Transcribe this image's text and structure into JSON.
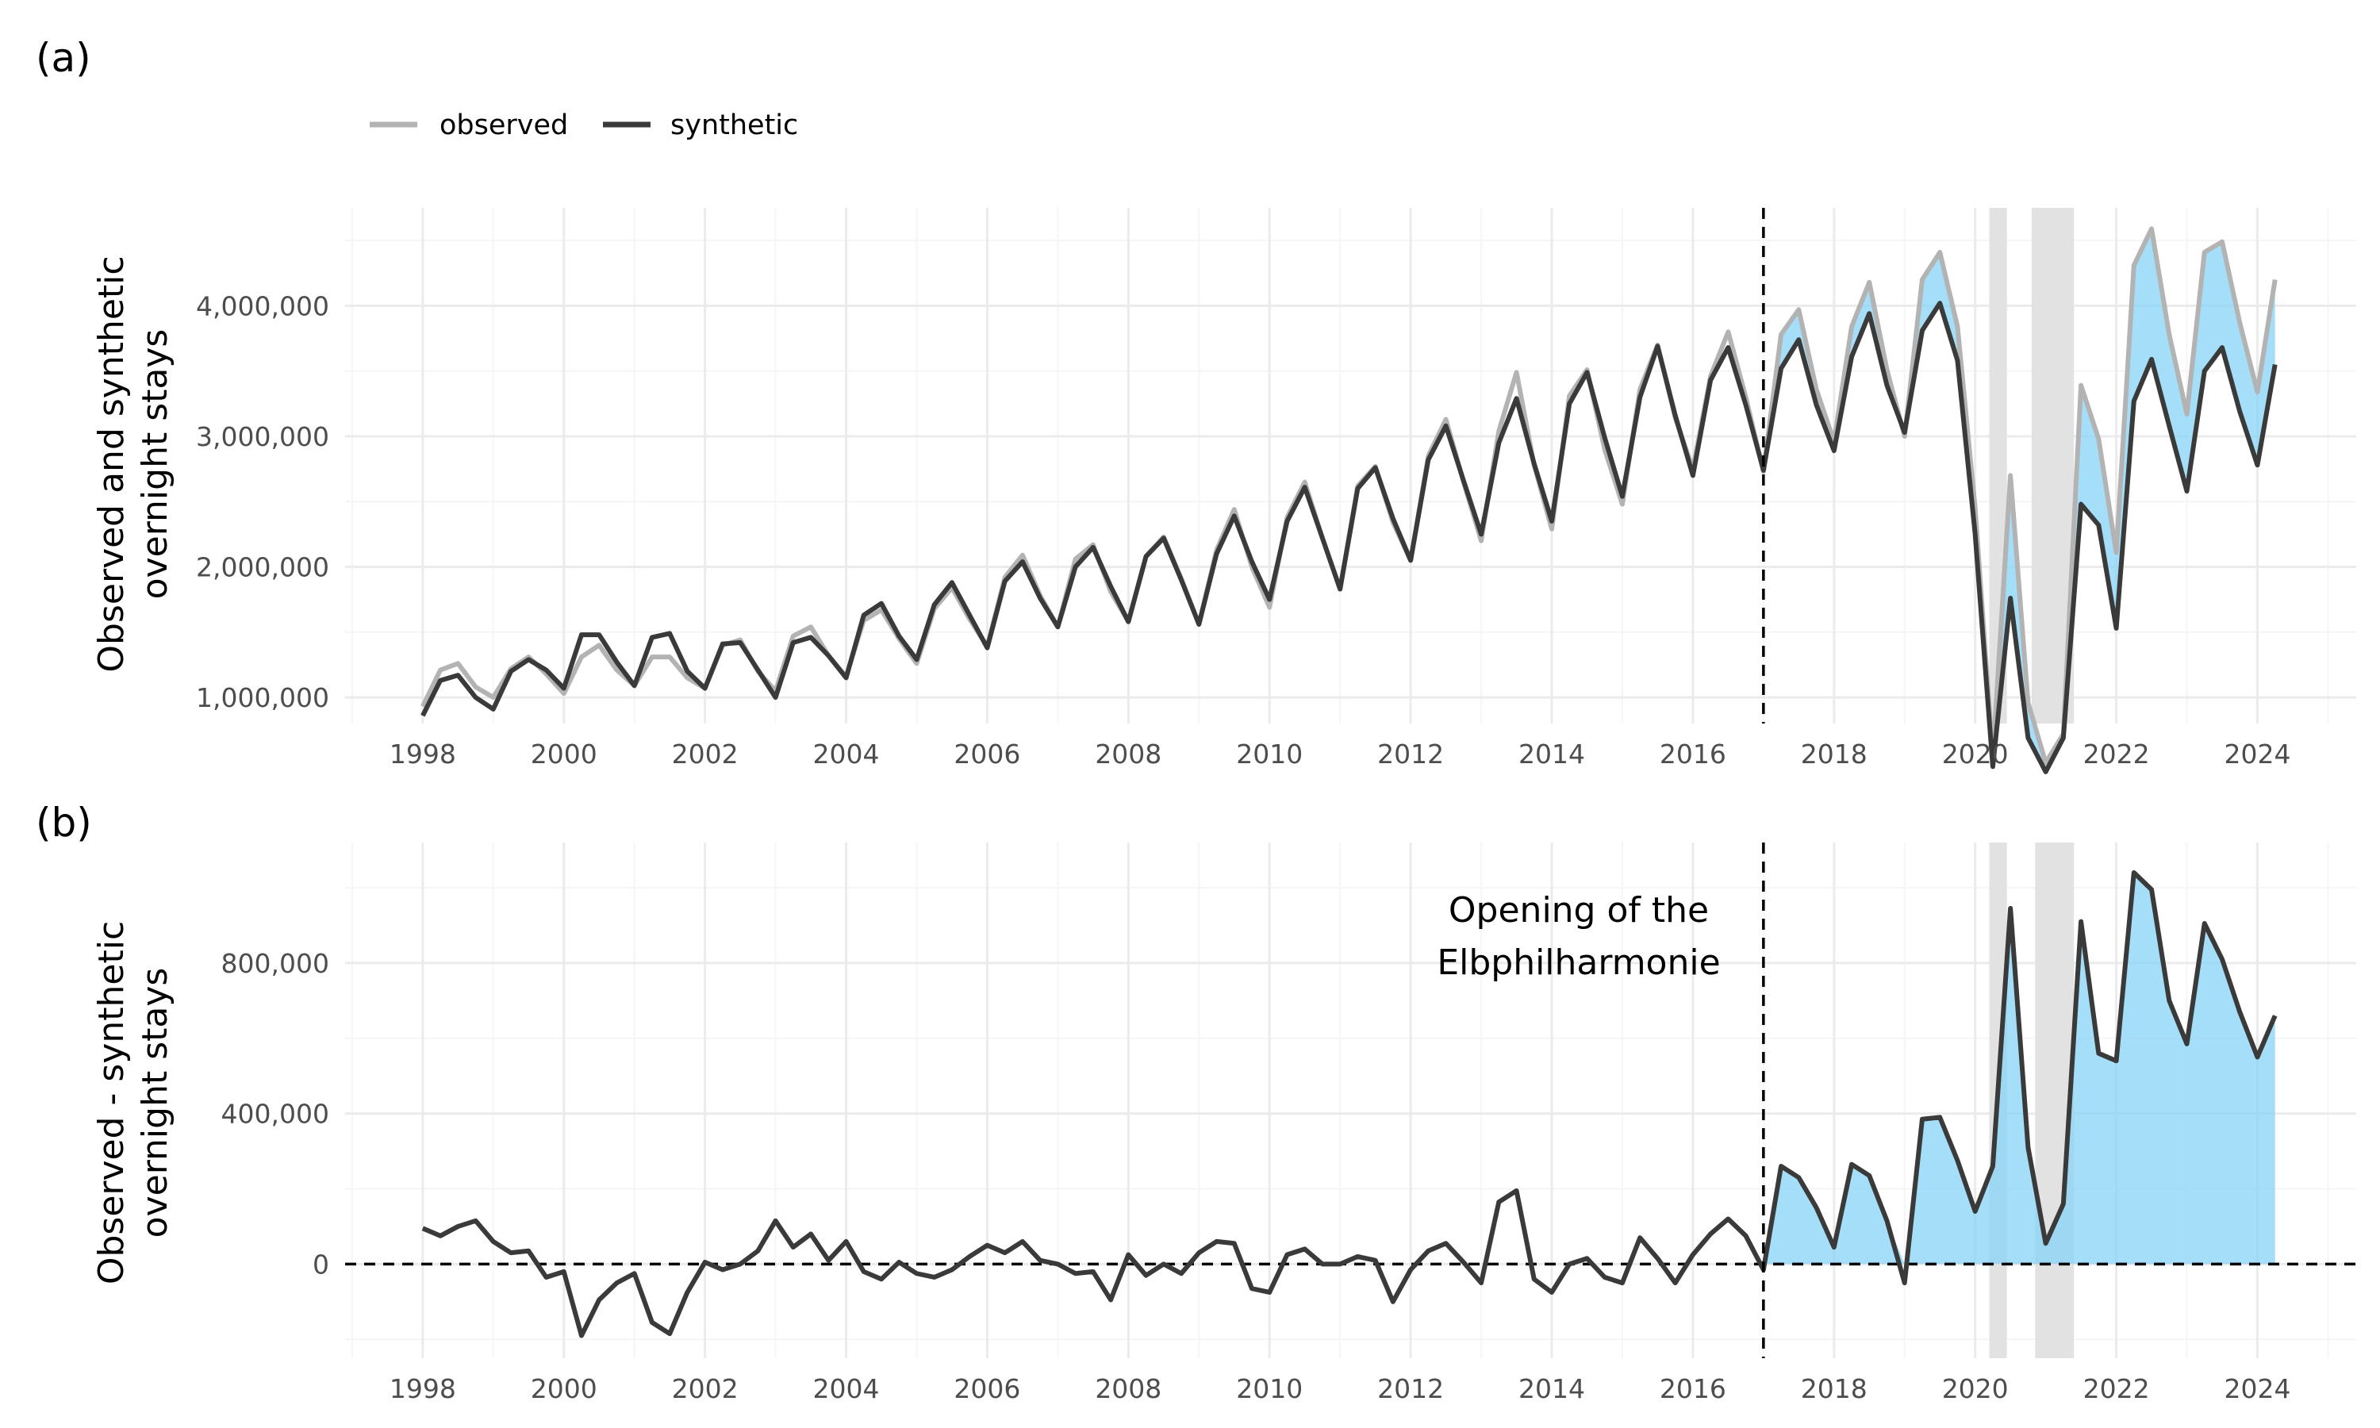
{
  "colors": {
    "observed": "#b3b3b3",
    "synthetic": "#3a3a3a",
    "gap_fill": "#87d3f7",
    "shade": "#e2e2e2",
    "grid_major": "#ebebeb",
    "grid_minor": "#f5f5f5"
  },
  "legend": {
    "observed": "observed",
    "synthetic": "synthetic"
  },
  "chart_data": [
    {
      "panel": "(a)",
      "type": "line",
      "ylabel_line1": "Observed and synthetic",
      "ylabel_line2": "overnight stays",
      "xlim": [
        1996.9,
        2025.4
      ],
      "ylim": [
        800000,
        4750000
      ],
      "x_ticks": [
        1998,
        2000,
        2002,
        2004,
        2006,
        2008,
        2010,
        2012,
        2014,
        2016,
        2018,
        2020,
        2022,
        2024
      ],
      "y_ticks": [
        {
          "value": 1000000,
          "label": "1,000,000"
        },
        {
          "value": 2000000,
          "label": "2,000,000"
        },
        {
          "value": 3000000,
          "label": "3,000,000"
        },
        {
          "value": 4000000,
          "label": "4,000,000"
        }
      ],
      "treatment_x": 2017.0,
      "shaded_periods": [
        [
          2020.2,
          2020.45
        ],
        [
          2020.8,
          2021.4
        ]
      ],
      "x_start": 1998.0,
      "x_step": 0.25,
      "series": [
        {
          "name": "observed",
          "values": [
            930000,
            1210000,
            1260000,
            1080000,
            1000000,
            1220000,
            1310000,
            1180000,
            1030000,
            1310000,
            1400000,
            1210000,
            1090000,
            1310000,
            1310000,
            1150000,
            1070000,
            1400000,
            1440000,
            1200000,
            1050000,
            1470000,
            1540000,
            1320000,
            1160000,
            1590000,
            1670000,
            1450000,
            1260000,
            1680000,
            1840000,
            1600000,
            1390000,
            1920000,
            2090000,
            1780000,
            1540000,
            2060000,
            2170000,
            1810000,
            1580000,
            2080000,
            2230000,
            1910000,
            1560000,
            2130000,
            2440000,
            2000000,
            1690000,
            2380000,
            2650000,
            2220000,
            1830000,
            2620000,
            2770000,
            2340000,
            2050000,
            2850000,
            3130000,
            2650000,
            2200000,
            3040000,
            3490000,
            2780000,
            2290000,
            3310000,
            3510000,
            2900000,
            2480000,
            3360000,
            3700000,
            3140000,
            2750000,
            3460000,
            3800000,
            3300000,
            2730000,
            3780000,
            3970000,
            3360000,
            2960000,
            3840000,
            4180000,
            3510000,
            3000000,
            4200000,
            4410000,
            3840000,
            2450000,
            540000,
            2700000,
            960000,
            500000,
            720000,
            3390000,
            2980000,
            2110000,
            4310000,
            4590000,
            3780000,
            3170000,
            4410000,
            4490000,
            3870000,
            3340000,
            4200000
          ],
          "color": "#b3b3b3"
        },
        {
          "name": "synthetic",
          "values": [
            860000,
            1130000,
            1170000,
            1000000,
            910000,
            1200000,
            1290000,
            1210000,
            1070000,
            1480000,
            1480000,
            1270000,
            1090000,
            1460000,
            1490000,
            1200000,
            1070000,
            1410000,
            1420000,
            1210000,
            1000000,
            1420000,
            1460000,
            1320000,
            1150000,
            1630000,
            1720000,
            1470000,
            1290000,
            1710000,
            1880000,
            1630000,
            1380000,
            1890000,
            2040000,
            1760000,
            1540000,
            2000000,
            2150000,
            1850000,
            1580000,
            2080000,
            2220000,
            1900000,
            1560000,
            2100000,
            2390000,
            2040000,
            1750000,
            2350000,
            2610000,
            2220000,
            1830000,
            2600000,
            2760000,
            2370000,
            2050000,
            2820000,
            3080000,
            2660000,
            2250000,
            2950000,
            3290000,
            2790000,
            2350000,
            3250000,
            3490000,
            2990000,
            2540000,
            3300000,
            3690000,
            3160000,
            2700000,
            3430000,
            3680000,
            3240000,
            2740000,
            3520000,
            3740000,
            3240000,
            2890000,
            3610000,
            3940000,
            3390000,
            3030000,
            3810000,
            4020000,
            3580000,
            2250000,
            470000,
            1760000,
            690000,
            430000,
            690000,
            2480000,
            2320000,
            1530000,
            3270000,
            3590000,
            3080000,
            2580000,
            3500000,
            3680000,
            3190000,
            2780000,
            3550000
          ],
          "color": "#3a3a3a"
        }
      ]
    },
    {
      "panel": "(b)",
      "type": "line",
      "ylabel_line1": "Observed - synthetic",
      "ylabel_line2": "overnight stays",
      "annotation_line1": "Opening of the",
      "annotation_line2": "Elbphilharmonie",
      "xlim": [
        1996.9,
        2025.4
      ],
      "ylim": [
        -250000,
        1120000
      ],
      "x_ticks": [
        1998,
        2000,
        2002,
        2004,
        2006,
        2008,
        2010,
        2012,
        2014,
        2016,
        2018,
        2020,
        2022,
        2024
      ],
      "y_ticks": [
        {
          "value": 0,
          "label": "0"
        },
        {
          "value": 400000,
          "label": "400,000"
        },
        {
          "value": 800000,
          "label": "800,000"
        }
      ],
      "treatment_x": 2017.0,
      "zero_line": 0,
      "shaded_periods": [
        [
          2020.2,
          2020.45
        ],
        [
          2020.85,
          2021.4
        ]
      ],
      "x_start": 1998.0,
      "x_step": 0.25,
      "series": [
        {
          "name": "observed - synthetic",
          "values": [
            95000,
            75000,
            100000,
            115000,
            60000,
            30000,
            35000,
            -35000,
            -20000,
            -190000,
            -95000,
            -50000,
            -25000,
            -155000,
            -185000,
            -75000,
            5000,
            -15000,
            0,
            35000,
            115000,
            45000,
            80000,
            10000,
            60000,
            -20000,
            -40000,
            5000,
            -25000,
            -35000,
            -15000,
            20000,
            50000,
            30000,
            60000,
            10000,
            0,
            -25000,
            -20000,
            -95000,
            25000,
            -30000,
            0,
            -25000,
            30000,
            60000,
            55000,
            -65000,
            -75000,
            25000,
            40000,
            0,
            0,
            20000,
            10000,
            -100000,
            -15000,
            35000,
            55000,
            5000,
            -50000,
            165000,
            195000,
            -40000,
            -75000,
            0,
            15000,
            -35000,
            -50000,
            70000,
            15000,
            -50000,
            25000,
            80000,
            120000,
            75000,
            -15000,
            260000,
            230000,
            150000,
            45000,
            265000,
            235000,
            115000,
            -50000,
            385000,
            390000,
            275000,
            140000,
            260000,
            945000,
            310000,
            55000,
            160000,
            910000,
            560000,
            540000,
            1040000,
            995000,
            700000,
            585000,
            905000,
            810000,
            670000,
            550000,
            660000
          ],
          "color": "#3a3a3a"
        }
      ]
    }
  ]
}
